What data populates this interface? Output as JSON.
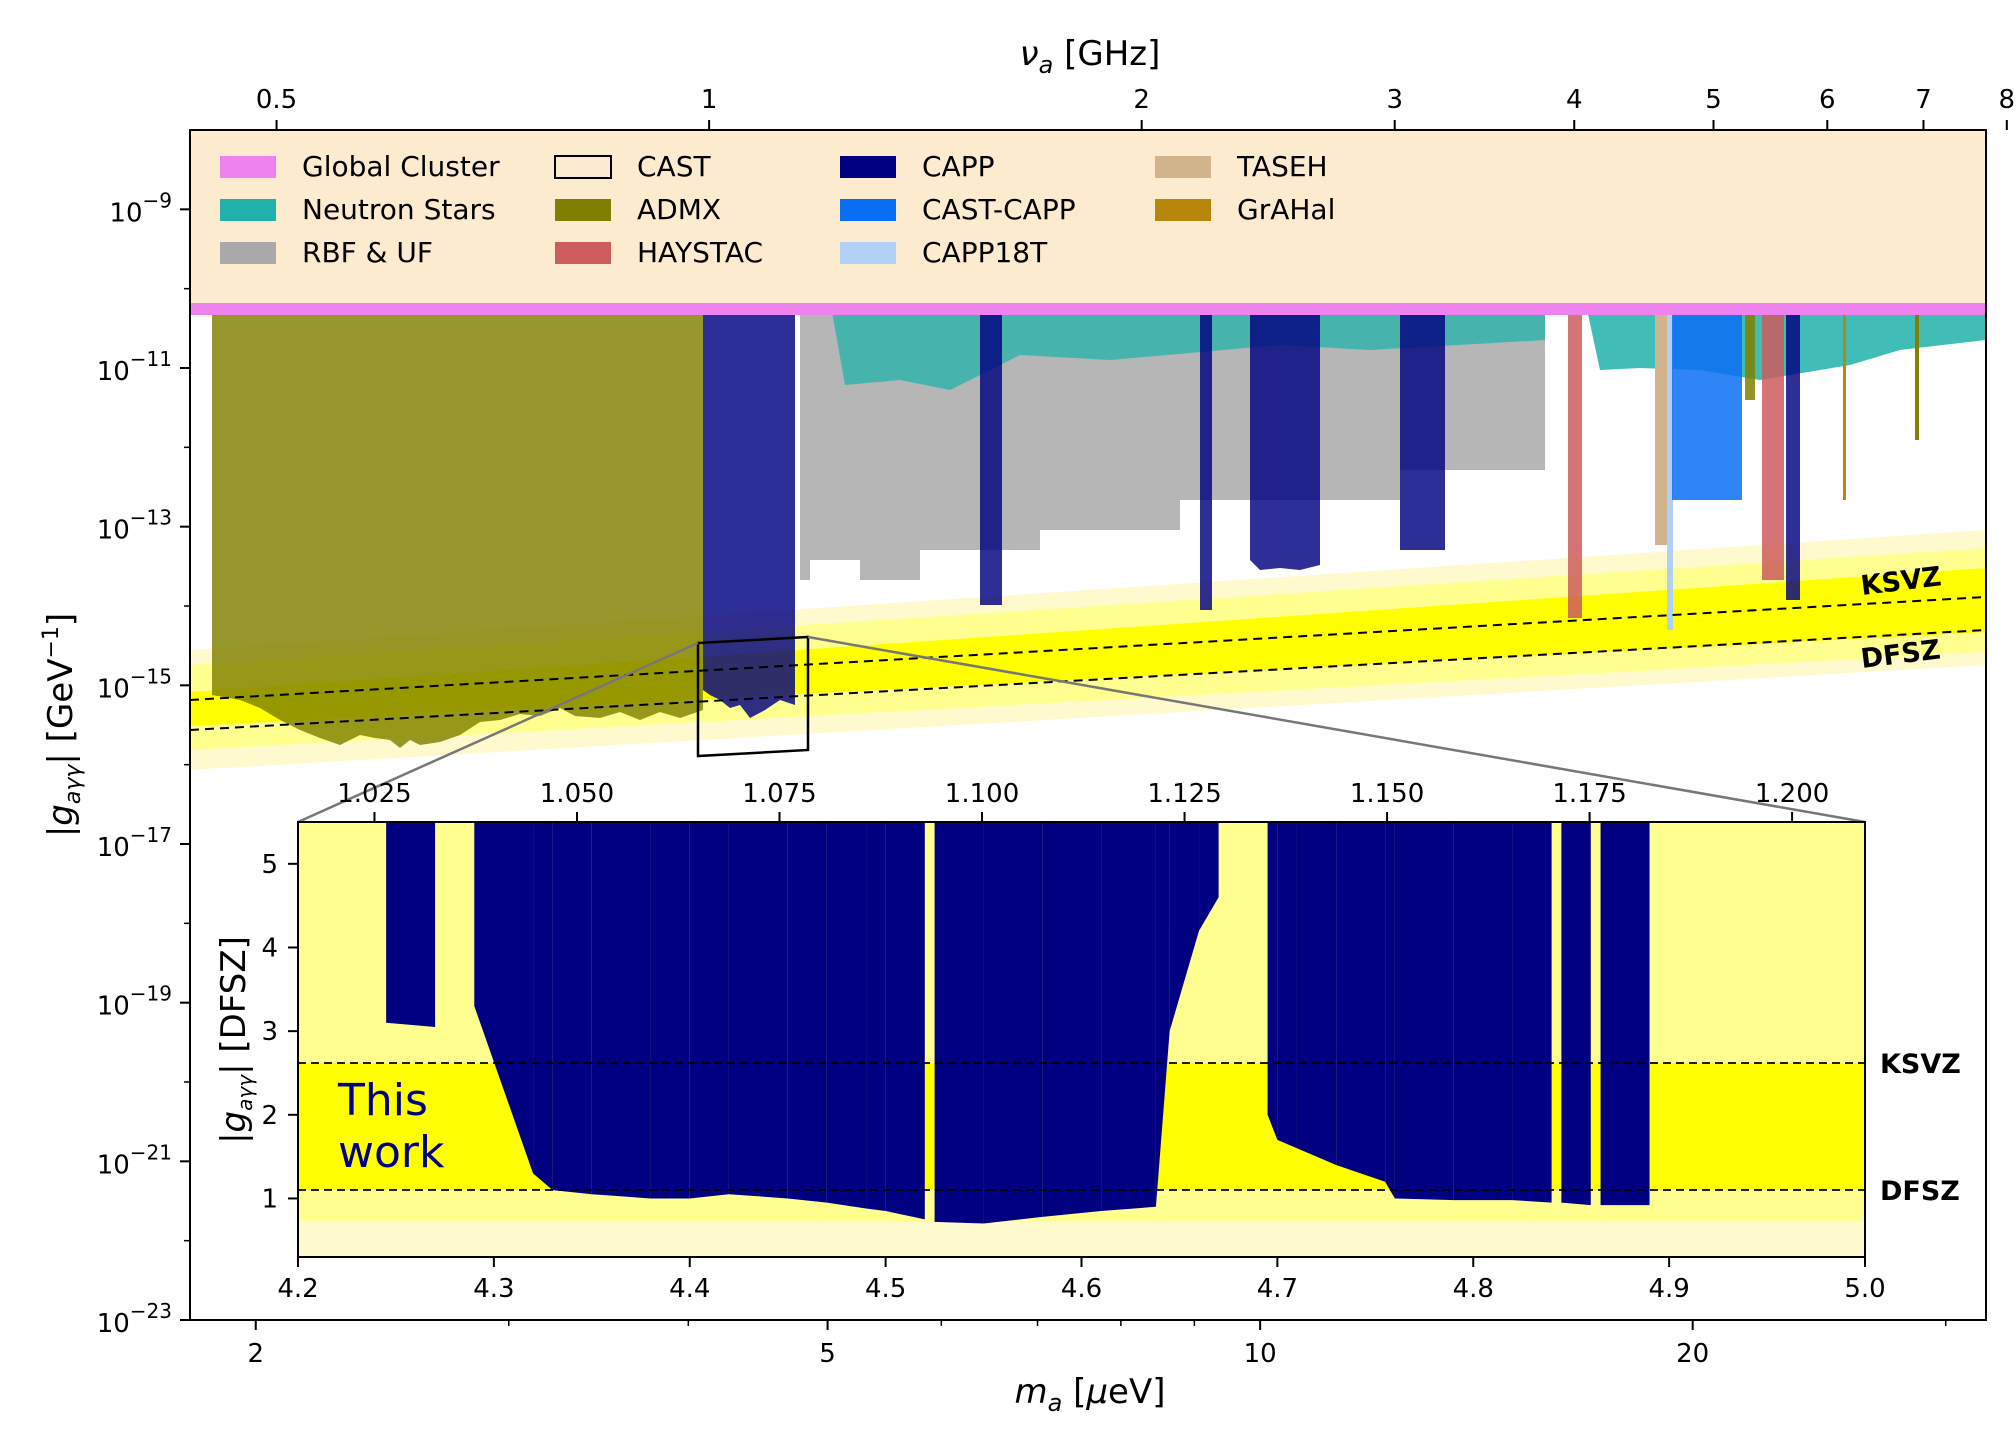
{
  "chart_data": [
    {
      "type": "area",
      "scale": "log-log",
      "xlabel": "m_a [μeV]",
      "top_xlabel": "ν_a [GHz]",
      "ylabel": "|g_aγγ| [GeV⁻¹]",
      "xlim": [
        1.8,
        32
      ],
      "ylim": [
        1e-23,
        1e-08
      ],
      "x_ticks": [
        "2",
        "5",
        "10",
        "20"
      ],
      "top_ticks": [
        "0.5",
        "1",
        "2",
        "3",
        "4",
        "5",
        "6",
        "7",
        "8"
      ],
      "y_ticks": [
        "10⁻⁹",
        "10⁻¹¹",
        "10⁻¹³",
        "10⁻¹⁵",
        "10⁻¹⁷",
        "10⁻¹⁹",
        "10⁻²¹",
        "10⁻²³"
      ],
      "legend_position": "top",
      "legend": [
        {
          "name": "Global Cluster",
          "color": "#ee82ee"
        },
        {
          "name": "Neutron Stars",
          "color": "#20b2aa"
        },
        {
          "name": "RBF & UF",
          "color": "#a9a9a9"
        },
        {
          "name": "CAST",
          "color": "none"
        },
        {
          "name": "ADMX",
          "color": "#808000"
        },
        {
          "name": "HAYSTAC",
          "color": "#cd5c5c"
        },
        {
          "name": "CAPP",
          "color": "#000080"
        },
        {
          "name": "CAST-CAPP",
          "color": "#0a6ef5"
        },
        {
          "name": "CAPP18T",
          "color": "#b0d0f5"
        },
        {
          "name": "TASEH",
          "color": "#d2b48c"
        },
        {
          "name": "GrAHal",
          "color": "#b8860b"
        }
      ],
      "band_labels": [
        "KSVZ",
        "DFSZ"
      ],
      "exclusions": [
        {
          "name": "ADMX",
          "color": "#808000",
          "x": [
            1.9,
            4.0
          ],
          "limit": 1.1e-15
        },
        {
          "name": "RBF & UF",
          "color": "#a9a9a9",
          "x": [
            5.0,
            16.0
          ],
          "limit": 1e-13
        },
        {
          "name": "CAPP",
          "color": "#000080",
          "x": [
            4.2,
            4.9
          ],
          "limit": 2.5e-16
        },
        {
          "name": "HAYSTAC",
          "color": "#cd5c5c",
          "x": [
            16.9,
            17.2
          ],
          "limit": 1.5e-14
        },
        {
          "name": "CAST-CAPP",
          "color": "#0a6ef5",
          "x": [
            19.7,
            22.5
          ],
          "limit": 5e-13
        }
      ]
    },
    {
      "type": "area",
      "title": "This work",
      "xlabel": "",
      "top_xlabel": "",
      "ylabel": "|g_aγγ| [DFSZ]",
      "xlim": [
        4.2,
        5.0
      ],
      "ylim": [
        0.3,
        5.5
      ],
      "x_ticks": [
        "4.2",
        "4.3",
        "4.4",
        "4.5",
        "4.6",
        "4.7",
        "4.8",
        "4.9",
        "5.0"
      ],
      "top_ticks": [
        "1.025",
        "1.050",
        "1.075",
        "1.100",
        "1.125",
        "1.150",
        "1.175",
        "1.200"
      ],
      "y_ticks": [
        "1",
        "2",
        "3",
        "4",
        "5"
      ],
      "reference_lines": [
        {
          "name": "KSVZ",
          "y": 2.55
        },
        {
          "name": "DFSZ",
          "y": 1.0
        }
      ],
      "series": [
        {
          "name": "CAPP",
          "color": "#000080",
          "x": [
            4.245,
            4.27,
            4.29,
            4.32,
            4.33,
            4.35,
            4.38,
            4.4,
            4.42,
            4.45,
            4.47,
            4.49,
            4.5,
            4.52,
            4.525,
            4.55,
            4.58,
            4.61,
            4.638,
            4.645,
            4.66,
            4.67,
            4.695,
            4.7,
            4.71,
            4.73,
            4.755,
            4.76,
            4.79,
            4.82,
            4.84,
            4.845,
            4.86,
            4.865,
            4.89
          ],
          "values": [
            3.1,
            3.05,
            3.3,
            1.3,
            1.1,
            1.05,
            1.0,
            1.0,
            1.05,
            1.0,
            0.95,
            0.88,
            0.85,
            0.75,
            0.72,
            0.7,
            0.78,
            0.85,
            0.9,
            3.0,
            4.2,
            4.6,
            2.0,
            1.7,
            1.6,
            1.4,
            1.2,
            1.0,
            0.98,
            0.98,
            0.95,
            0.95,
            0.92,
            0.92,
            0.92
          ]
        }
      ]
    }
  ]
}
